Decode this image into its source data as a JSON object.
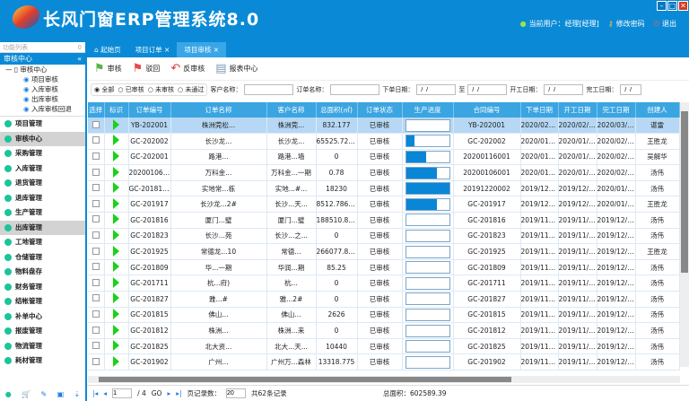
{
  "app": {
    "title": "长风门窗ERP管理系统8.0",
    "current_user": "当前用户：经理[经理]",
    "change_password": "修改密码",
    "logout": "退出"
  },
  "sidebar": {
    "filter_label": "功能列表",
    "filter_count": "0",
    "accordion_title": "审核中心",
    "tree": {
      "root": "审核中心",
      "items": [
        "项目审核",
        "入库审核",
        "出库审核",
        "入库审核回退"
      ]
    },
    "modules": [
      {
        "label": "项目管理"
      },
      {
        "label": "审核中心",
        "active": true
      },
      {
        "label": "采购管理"
      },
      {
        "label": "入库管理"
      },
      {
        "label": "退货管理"
      },
      {
        "label": "退库管理"
      },
      {
        "label": "生产管理"
      },
      {
        "label": "出库管理",
        "active": true
      },
      {
        "label": "工地管理"
      },
      {
        "label": "仓储管理"
      },
      {
        "label": "物料盘存"
      },
      {
        "label": "财务管理"
      },
      {
        "label": "结帐管理"
      },
      {
        "label": "补单中心"
      },
      {
        "label": "报废管理"
      },
      {
        "label": "物流管理"
      },
      {
        "label": "耗材管理"
      }
    ]
  },
  "tabs": [
    {
      "label": "起始页"
    },
    {
      "label": "项目订单"
    },
    {
      "label": "项目审核",
      "active": true
    }
  ],
  "toolbar": {
    "approve": "审核",
    "reject": "驳回",
    "unapprove": "反审核",
    "report": "报表中心"
  },
  "filter": {
    "radios": [
      "全部",
      "已审核",
      "未审核",
      "未通过"
    ],
    "selected": "全部",
    "customer_label": "客户名称：",
    "order_name_label": "订单名称：",
    "order_date_label": "下单日期：",
    "to_label": "至",
    "start_date_label": "开工日期：",
    "finish_date_label": "完工日期：",
    "date_placeholder": " /  /"
  },
  "table": {
    "headers": [
      "选择",
      "标识",
      "订单编号",
      "订单名称",
      "客户名称",
      "总面积(㎡)",
      "订单状态",
      "生产进度",
      "合同编号",
      "下单日期",
      "开工日期",
      "完工日期",
      "创建人"
    ],
    "rows": [
      [
        "YB-202001",
        "株洲莞松...",
        "株洲莞...",
        "832.177",
        "已审核",
        0,
        "YB-202001",
        "2020/02/28",
        "2020/02/28",
        "2020/03/28",
        "谌雷"
      ],
      [
        "GC-202002",
        "长沙龙...",
        "长沙龙...",
        "65525.7200...",
        "已审核",
        0.2,
        "GC-202002",
        "2020/01/19",
        "2020/01/19",
        "2020/02/19",
        "王胜龙"
      ],
      [
        "GC-202001",
        "路港...",
        "路港...墙",
        "0",
        "已审核",
        0.47,
        "20200116001",
        "2020/01/16",
        "2020/01/16",
        "2020/02/16",
        "吴解华"
      ],
      [
        "20200106001",
        "万科金...",
        "万科金...一期",
        "0.78",
        "已审核",
        0.72,
        "20200106001",
        "2020/01/06",
        "2020/01/06",
        "2020/02/06",
        "汤伟"
      ],
      [
        "GC-2018178",
        "实地常...栋",
        "实地...#...",
        "18230",
        "已审核",
        1.0,
        "20191220002",
        "2019/12/20",
        "2019/12/20",
        "2020/01/20",
        "汤伟"
      ],
      [
        "GC-201917",
        "长沙龙...2#",
        "长沙...天...",
        "8512.78600...",
        "已审核",
        0.72,
        "GC-201917",
        "2019/12/17",
        "2019/12/17",
        "2020/01/17",
        "王胜龙"
      ],
      [
        "GC-201816",
        "厦门...璧",
        "厦门...璧",
        "188510.818",
        "已审核",
        0,
        "GC-201816",
        "2019/11/30",
        "2019/11/30",
        "2019/12/30",
        "汤伟"
      ],
      [
        "GC-201823",
        "长沙...苑",
        "长沙...之...",
        "0",
        "已审核",
        0,
        "GC-201823",
        "2019/11/27",
        "2019/11/27",
        "2019/12/27",
        "汤伟"
      ],
      [
        "GC-201925",
        "常德龙...10",
        "常德...",
        "266077.835...",
        "已审核",
        0,
        "GC-201925",
        "2019/11/21",
        "2019/11/21",
        "2019/12/21",
        "王胜龙"
      ],
      [
        "GC-201809",
        "华...一期",
        "华润...期",
        "85.25",
        "已审核",
        0,
        "GC-201809",
        "2019/11/20",
        "2019/11/20",
        "2019/12/20",
        "汤伟"
      ],
      [
        "GC-201711",
        "杭...府)",
        "杭...",
        "0",
        "已审核",
        0,
        "GC-201711",
        "2019/11/20",
        "2019/11/20",
        "2019/12/20",
        "汤伟"
      ],
      [
        "GC-201827",
        "雅...#",
        "雅...2#",
        "0",
        "已审核",
        0,
        "GC-201827",
        "2019/11/20",
        "2019/11/20",
        "2019/12/20",
        "汤伟"
      ],
      [
        "GC-201815",
        "佛山...",
        "佛山...",
        "2626",
        "已审核",
        0,
        "GC-201815",
        "2019/11/20",
        "2019/11/20",
        "2019/12/20",
        "汤伟"
      ],
      [
        "GC-201812",
        "株洲...",
        "株洲...来",
        "0",
        "已审核",
        0,
        "GC-201812",
        "2019/11/20",
        "2019/11/20",
        "2019/12/20",
        "汤伟"
      ],
      [
        "GC-201825",
        "北大资...",
        "北大...天...",
        "10440",
        "已审核",
        0,
        "GC-201825",
        "2019/11/19",
        "2019/11/19",
        "2019/12/19",
        "汤伟"
      ],
      [
        "GC-201902",
        "广州...",
        "广州万...森林",
        "13318.775",
        "已审核",
        0,
        "GC-201902",
        "2019/11/19",
        "2019/11/19",
        "2019/12/19",
        "汤伟"
      ]
    ]
  },
  "pager": {
    "page": "1",
    "total_pages": "/ 4",
    "go": "GO",
    "page_size_label": "页记录数：",
    "page_size": "20",
    "total_records": "共62条记录",
    "total_area": "总面积：602589.39"
  },
  "colors": {
    "brand": "#0a8ad6",
    "header_row": "#3ba5e2",
    "selected_row": "#b6d8f5",
    "progress": "#0a86d6",
    "flag": "#19d219"
  }
}
